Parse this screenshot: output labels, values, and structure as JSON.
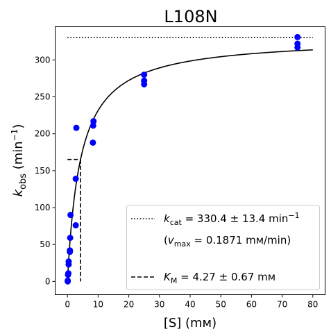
{
  "chart_data": {
    "type": "scatter",
    "title": "L108N",
    "xlabel": "[S] (mм)",
    "ylabel_main": "k",
    "ylabel_sub": "obs",
    "ylabel_unit_open": " (min",
    "ylabel_sup": "−1",
    "ylabel_unit_close": ")",
    "xlim": [
      -4,
      84
    ],
    "ylim": [
      -18,
      345
    ],
    "xticks": [
      0,
      10,
      20,
      30,
      40,
      50,
      60,
      70,
      80
    ],
    "yticks": [
      0,
      50,
      100,
      150,
      200,
      250,
      300
    ],
    "grid": false,
    "legend_position": "lower-right",
    "point_color": "#0000ff",
    "points": [
      {
        "x": 0.1,
        "y": 0
      },
      {
        "x": 0.1,
        "y": 1
      },
      {
        "x": 0.2,
        "y": 9
      },
      {
        "x": 0.3,
        "y": 11
      },
      {
        "x": 0.4,
        "y": 23
      },
      {
        "x": 0.4,
        "y": 27
      },
      {
        "x": 0.8,
        "y": 40
      },
      {
        "x": 0.8,
        "y": 42
      },
      {
        "x": 0.9,
        "y": 59
      },
      {
        "x": 1.0,
        "y": 90
      },
      {
        "x": 2.7,
        "y": 76
      },
      {
        "x": 2.7,
        "y": 139
      },
      {
        "x": 2.9,
        "y": 208
      },
      {
        "x": 8.3,
        "y": 188
      },
      {
        "x": 8.4,
        "y": 211
      },
      {
        "x": 8.5,
        "y": 217
      },
      {
        "x": 25,
        "y": 267
      },
      {
        "x": 25,
        "y": 272
      },
      {
        "x": 25,
        "y": 280
      },
      {
        "x": 75,
        "y": 317
      },
      {
        "x": 75,
        "y": 322
      },
      {
        "x": 75,
        "y": 331
      }
    ],
    "fit": {
      "kcat": 330.4,
      "KM": 4.27,
      "x_range": [
        0,
        80
      ]
    },
    "kcat_line": {
      "y": 330.4,
      "x_range": [
        0,
        80
      ]
    },
    "km_lines": {
      "x": 4.27,
      "y": 165.2,
      "x_start": 0
    },
    "legend": {
      "kcat": {
        "k": "k",
        "sub": "cat",
        "text": " = 330.4 ± 13.4 min",
        "sup": "−1"
      },
      "vmax": {
        "open": "(",
        "v": "v",
        "sub": "max",
        "text": " = 0.1871 mм/min)"
      },
      "km": {
        "k": "K",
        "sub": "M",
        "text": " = 4.27 ± 0.67 mм"
      }
    }
  }
}
